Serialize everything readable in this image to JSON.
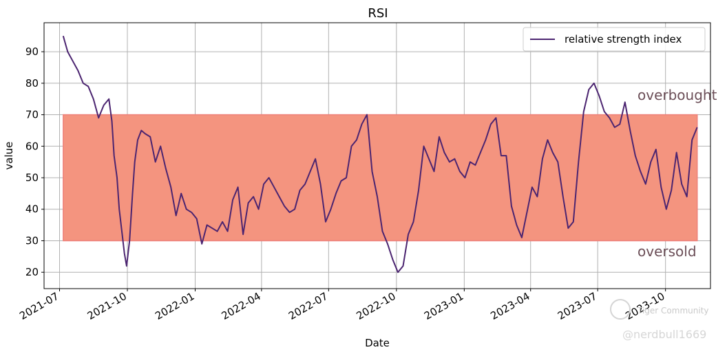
{
  "chart_data": {
    "type": "line",
    "title": "RSI",
    "xlabel": "Date",
    "ylabel": "value",
    "x_tick_labels": [
      "2021-07",
      "2021-10",
      "2022-01",
      "2022-04",
      "2022-07",
      "2022-10",
      "2023-01",
      "2023-04",
      "2023-07",
      "2023-10"
    ],
    "y_ticks": [
      20,
      30,
      40,
      50,
      60,
      70,
      80,
      90
    ],
    "ylim": [
      14.8,
      99.2
    ],
    "grid": true,
    "legend": {
      "placement": "top-right",
      "entries": [
        "relative strength index"
      ]
    },
    "colors": {
      "line": "#4b2470",
      "band_fill": "#f4947f",
      "band_edge": "#ee7f78",
      "grid": "#b0b0b0",
      "zone_label": "#6b4e57"
    },
    "band": {
      "lower": 30,
      "upper": 70
    },
    "annotations": [
      {
        "text": "overbought",
        "y": 76
      },
      {
        "text": "oversold",
        "y": 26
      }
    ],
    "series": [
      {
        "name": "relative strength index",
        "x": [
          "2021-07-06",
          "2021-07-12",
          "2021-07-19",
          "2021-07-26",
          "2021-08-02",
          "2021-08-09",
          "2021-08-16",
          "2021-08-23",
          "2021-08-30",
          "2021-09-06",
          "2021-09-10",
          "2021-09-13",
          "2021-09-17",
          "2021-09-20",
          "2021-09-24",
          "2021-09-27",
          "2021-09-30",
          "2021-10-04",
          "2021-10-08",
          "2021-10-11",
          "2021-10-15",
          "2021-10-20",
          "2021-10-25",
          "2021-11-01",
          "2021-11-08",
          "2021-11-15",
          "2021-11-22",
          "2021-11-29",
          "2021-12-06",
          "2021-12-13",
          "2021-12-20",
          "2021-12-27",
          "2022-01-03",
          "2022-01-10",
          "2022-01-17",
          "2022-01-24",
          "2022-01-31",
          "2022-02-07",
          "2022-02-14",
          "2022-02-21",
          "2022-02-28",
          "2022-03-07",
          "2022-03-14",
          "2022-03-21",
          "2022-03-28",
          "2022-04-04",
          "2022-04-11",
          "2022-04-18",
          "2022-04-25",
          "2022-05-02",
          "2022-05-09",
          "2022-05-16",
          "2022-05-23",
          "2022-05-30",
          "2022-06-06",
          "2022-06-13",
          "2022-06-20",
          "2022-06-27",
          "2022-07-04",
          "2022-07-11",
          "2022-07-18",
          "2022-07-25",
          "2022-08-01",
          "2022-08-08",
          "2022-08-15",
          "2022-08-22",
          "2022-08-29",
          "2022-09-05",
          "2022-09-12",
          "2022-09-19",
          "2022-09-26",
          "2022-10-03",
          "2022-10-10",
          "2022-10-17",
          "2022-10-24",
          "2022-10-31",
          "2022-11-07",
          "2022-11-14",
          "2022-11-21",
          "2022-11-28",
          "2022-12-05",
          "2022-12-12",
          "2022-12-19",
          "2022-12-26",
          "2023-01-02",
          "2023-01-09",
          "2023-01-16",
          "2023-01-23",
          "2023-01-30",
          "2023-02-06",
          "2023-02-13",
          "2023-02-20",
          "2023-02-27",
          "2023-03-06",
          "2023-03-13",
          "2023-03-20",
          "2023-03-27",
          "2023-04-03",
          "2023-04-10",
          "2023-04-17",
          "2023-04-24",
          "2023-05-01",
          "2023-05-08",
          "2023-05-15",
          "2023-05-22",
          "2023-05-29",
          "2023-06-05",
          "2023-06-12",
          "2023-06-19",
          "2023-06-26",
          "2023-07-03",
          "2023-07-10",
          "2023-07-17",
          "2023-07-24",
          "2023-07-31",
          "2023-08-07",
          "2023-08-14",
          "2023-08-21",
          "2023-08-28",
          "2023-09-04",
          "2023-09-11",
          "2023-09-18",
          "2023-09-25",
          "2023-10-02",
          "2023-10-09",
          "2023-10-16",
          "2023-10-23",
          "2023-10-30",
          "2023-11-06",
          "2023-11-13"
        ],
        "values": [
          95,
          90,
          87,
          84,
          80,
          79,
          75,
          69,
          73,
          75,
          68,
          57,
          50,
          40,
          32,
          26,
          22,
          30,
          45,
          55,
          62,
          65,
          64,
          63,
          55,
          60,
          53,
          47,
          38,
          45,
          40,
          39,
          37,
          29,
          35,
          34,
          33,
          36,
          33,
          43,
          47,
          32,
          42,
          44,
          40,
          48,
          50,
          47,
          44,
          41,
          39,
          40,
          46,
          48,
          52,
          56,
          48,
          36,
          40,
          45,
          49,
          50,
          60,
          62,
          67,
          70,
          52,
          44,
          33,
          29,
          24,
          20,
          22,
          32,
          36,
          46,
          60,
          56,
          52,
          63,
          58,
          55,
          56,
          52,
          50,
          55,
          54,
          58,
          62,
          67,
          69,
          57,
          57,
          41,
          35,
          31,
          39,
          47,
          44,
          56,
          62,
          58,
          55,
          44,
          34,
          36,
          55,
          71,
          78,
          80,
          76,
          71,
          69,
          66,
          67,
          74,
          65,
          57,
          52,
          48,
          55,
          59,
          47,
          40,
          46,
          58,
          48,
          44,
          62,
          66
        ]
      }
    ]
  }
}
